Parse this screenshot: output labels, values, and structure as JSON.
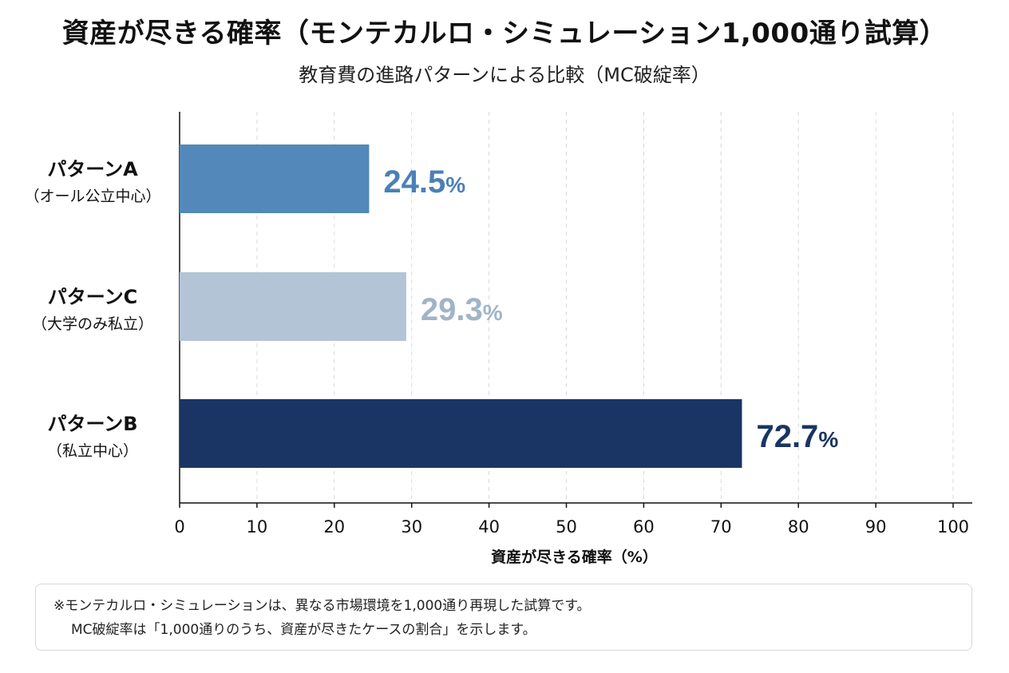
{
  "chart_data": {
    "type": "bar",
    "orientation": "horizontal",
    "title": "資産が尽きる確率（モンテカルロ・シミュレーション1,000通り試算）",
    "subtitle": "教育費の進路パターンによる比較（MC破綻率）",
    "xlabel": "資産が尽きる確率（%）",
    "ylabel": "",
    "xlim": [
      0,
      100
    ],
    "xticks": [
      0,
      10,
      20,
      30,
      40,
      50,
      60,
      70,
      80,
      90,
      100
    ],
    "grid": "vertical-dashed",
    "categories": [
      {
        "line1": "パターンA",
        "line2": "（オール公立中心）"
      },
      {
        "line1": "パターンC",
        "line2": "（大学のみ私立）"
      },
      {
        "line1": "パターンB",
        "line2": "（私立中心）"
      }
    ],
    "values": [
      24.5,
      29.3,
      72.7
    ],
    "value_labels": [
      "24.5",
      "29.3",
      "72.7"
    ],
    "value_suffix": "%",
    "colors": [
      "#5288ba",
      "#b3c4d6",
      "#1a3563"
    ],
    "label_colors": [
      "#4a80b8",
      "#a0b4c8",
      "#1a3563"
    ]
  },
  "note": {
    "line1": "※モンテカルロ・シミュレーションは、異なる市場環境を1,000通り再現した試算です。",
    "line2": "MC破綻率は「1,000通りのうち、資産が尽きたケースの割合」を示します。"
  }
}
